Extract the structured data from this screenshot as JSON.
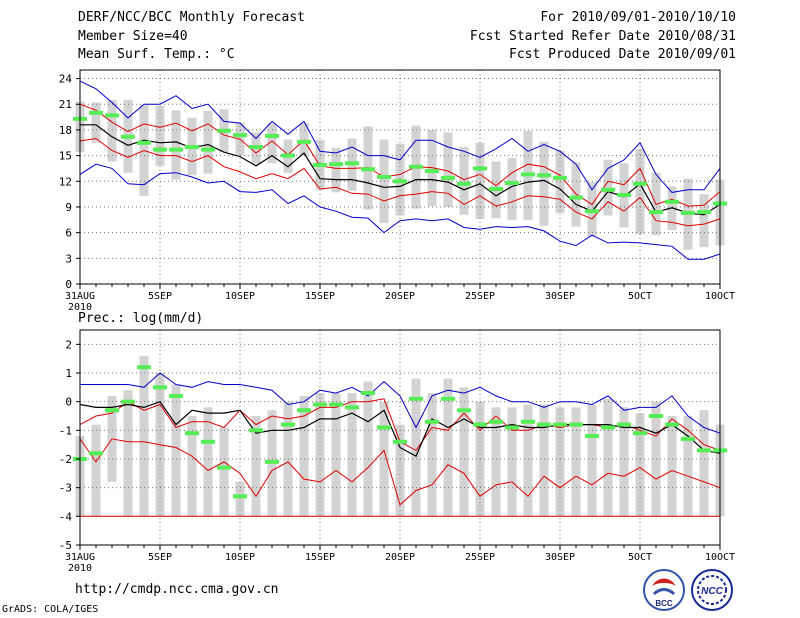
{
  "header": {
    "title": "DERF/NCC/BCC Monthly Forecast",
    "member_size": "Member Size=40",
    "variable1": "Mean Surf. Temp.: °C",
    "period": "For 2010/09/01-2010/10/10",
    "refer_date": "Fcst Started Refer Date 2010/08/31",
    "produced_date": "Fcst Produced Date 2010/09/01"
  },
  "footer": {
    "url": "http://cmdp.ncc.cma.gov.cn",
    "grads": "GrADS: COLA/IGES",
    "logo1_text": "BCC",
    "logo2_text": "NCC"
  },
  "colors": {
    "box": "#d3d3d3",
    "ensemble_mean": "#000000",
    "std_band": "#e00000",
    "envelope": "#0000cc",
    "median_marker": "#55ee55",
    "grid": "#777777"
  },
  "chart_data": [
    {
      "type": "line",
      "title": "Mean Surf. Temp.: °C",
      "xlabel": "",
      "ylabel": "°C",
      "ylim": [
        0,
        25
      ],
      "yticks": [
        0,
        3,
        6,
        9,
        12,
        15,
        18,
        21,
        24
      ],
      "x_tick_labels": [
        "31AUG",
        "5SEP",
        "10SEP",
        "15SEP",
        "20SEP",
        "25SEP",
        "30SEP",
        "5OCT",
        "10OCT"
      ],
      "x_sub_label": "2010",
      "series": [
        {
          "name": "max",
          "values": [
            23.7,
            22.8,
            21.2,
            19.4,
            21.0,
            21.0,
            22.0,
            20.5,
            21.0,
            19.0,
            18.8,
            17.0,
            19.0,
            17.5,
            19.0,
            15.5,
            15.3,
            16.0,
            15.0,
            15.0,
            14.5,
            16.8,
            16.8,
            16.0,
            15.5,
            14.8,
            15.8,
            17.0,
            15.5,
            16.3,
            15.5,
            14.0,
            11.0,
            13.5,
            14.5,
            16.5,
            12.8,
            10.7,
            11.0,
            11.0,
            13.5
          ]
        },
        {
          "name": "mean_plus_std",
          "values": [
            21.0,
            20.3,
            18.9,
            17.8,
            18.7,
            18.3,
            18.8,
            17.9,
            18.7,
            17.4,
            16.9,
            15.3,
            16.7,
            15.1,
            16.8,
            13.8,
            13.5,
            13.5,
            13.6,
            12.5,
            12.8,
            13.7,
            13.6,
            13.2,
            12.2,
            12.8,
            11.5,
            13.0,
            14.0,
            13.7,
            12.7,
            10.5,
            9.3,
            12.0,
            11.6,
            13.5,
            9.3,
            9.9,
            9.1,
            9.2,
            10.8
          ]
        },
        {
          "name": "ensemble_mean",
          "values": [
            18.6,
            18.6,
            17.2,
            16.2,
            16.8,
            16.5,
            16.6,
            15.9,
            16.3,
            15.4,
            14.9,
            13.8,
            15.0,
            13.7,
            15.3,
            12.3,
            12.2,
            12.2,
            11.8,
            11.3,
            11.4,
            12.2,
            12.2,
            11.9,
            11.0,
            11.7,
            10.3,
            11.4,
            11.9,
            12.1,
            11.1,
            9.3,
            8.5,
            10.8,
            10.2,
            11.7,
            8.4,
            8.9,
            8.3,
            8.1,
            9.3
          ]
        },
        {
          "name": "mean_minus_std",
          "values": [
            16.7,
            17.0,
            15.6,
            14.8,
            15.6,
            15.0,
            15.0,
            14.3,
            15.0,
            13.7,
            13.1,
            12.3,
            12.9,
            12.3,
            13.5,
            11.1,
            11.3,
            10.6,
            10.5,
            9.7,
            10.3,
            10.5,
            10.8,
            10.6,
            9.3,
            10.3,
            9.1,
            9.6,
            10.3,
            10.2,
            9.9,
            8.4,
            7.6,
            9.6,
            8.5,
            10.1,
            7.4,
            7.2,
            6.8,
            7.0,
            7.6
          ]
        },
        {
          "name": "min",
          "values": [
            12.8,
            14.0,
            13.5,
            11.7,
            11.6,
            12.9,
            13.0,
            12.5,
            11.8,
            12.0,
            10.8,
            10.7,
            11.0,
            9.4,
            10.3,
            9.0,
            8.5,
            7.8,
            7.7,
            6.0,
            7.4,
            7.6,
            7.4,
            7.6,
            6.6,
            6.4,
            6.7,
            6.6,
            6.7,
            6.2,
            5.0,
            4.5,
            5.7,
            4.8,
            4.9,
            4.8,
            4.6,
            4.4,
            2.9,
            2.9,
            3.5
          ]
        },
        {
          "name": "median",
          "values": [
            19.3,
            20.0,
            19.7,
            17.2,
            16.5,
            15.7,
            15.7,
            16.0,
            15.7,
            17.9,
            17.4,
            16.0,
            17.3,
            15.0,
            16.6,
            13.9,
            14.0,
            14.1,
            13.4,
            12.5,
            12.0,
            13.7,
            13.2,
            12.4,
            11.7,
            13.5,
            11.1,
            11.8,
            12.8,
            12.7,
            12.4,
            10.1,
            8.5,
            11.0,
            10.4,
            11.7,
            8.4,
            9.6,
            8.3,
            8.4,
            9.4
          ]
        },
        {
          "name": "box_upper",
          "values": [
            21.3,
            21.2,
            21.5,
            21.5,
            20.9,
            20.8,
            20.3,
            19.4,
            20.2,
            20.4,
            18.8,
            17.7,
            18.8,
            16.9,
            18.8,
            16.8,
            15.9,
            17.0,
            18.4,
            16.9,
            16.4,
            18.5,
            18.0,
            17.7,
            16.0,
            16.5,
            14.3,
            14.7,
            17.9,
            16.6,
            15.6,
            14.2,
            11.9,
            14.5,
            14.1,
            15.8,
            13.0,
            11.4,
            12.3,
            10.5,
            12.2
          ]
        },
        {
          "name": "box_lower",
          "values": [
            15.4,
            16.5,
            14.3,
            13.0,
            10.3,
            13.8,
            12.2,
            12.7,
            12.9,
            15.4,
            15.1,
            14.0,
            14.1,
            13.0,
            15.0,
            11.0,
            10.7,
            10.9,
            8.7,
            7.1,
            8.0,
            8.8,
            9.1,
            9.0,
            8.1,
            7.6,
            7.7,
            7.5,
            7.5,
            6.8,
            8.3,
            6.7,
            5.5,
            8.0,
            6.6,
            5.8,
            5.7,
            6.3,
            4.0,
            4.3,
            4.5
          ]
        }
      ]
    },
    {
      "type": "line",
      "title": "Prec.: log(mm/d)",
      "xlabel": "",
      "ylabel": "log(mm/d)",
      "ylim": [
        -5,
        2.5
      ],
      "yticks": [
        -5,
        -4,
        -3,
        -2,
        -1,
        0,
        1,
        2
      ],
      "x_tick_labels": [
        "31AUG",
        "5SEP",
        "10SEP",
        "15SEP",
        "20SEP",
        "25SEP",
        "30SEP",
        "5OCT",
        "10OCT"
      ],
      "x_sub_label": "2010",
      "series": [
        {
          "name": "max",
          "values": [
            0.6,
            0.6,
            0.6,
            0.6,
            0.5,
            1.0,
            0.6,
            0.5,
            0.7,
            0.6,
            0.6,
            0.5,
            0.4,
            -0.1,
            0.0,
            0.4,
            0.3,
            0.5,
            0.2,
            0.7,
            0.2,
            -0.9,
            0.2,
            0.4,
            0.3,
            0.5,
            0.2,
            0.0,
            0.0,
            -0.2,
            0.0,
            0.0,
            -0.1,
            0.2,
            -0.3,
            -0.2,
            -0.2,
            0.2,
            -0.5,
            -0.9,
            -1.1
          ]
        },
        {
          "name": "mean_plus_std",
          "values": [
            -0.8,
            -0.5,
            -0.4,
            0.0,
            -0.3,
            -0.1,
            -0.9,
            -0.7,
            -0.7,
            -0.9,
            -0.3,
            -0.8,
            -0.5,
            -0.6,
            -0.5,
            -0.2,
            -0.2,
            0.0,
            0.0,
            0.1,
            -1.4,
            -1.7,
            -0.9,
            -1.0,
            -0.4,
            -1.0,
            -0.5,
            -1.0,
            -1.0,
            -0.8,
            -0.9,
            -0.8,
            -0.8,
            -0.9,
            -0.8,
            -1.0,
            -1.2,
            -0.6,
            -1.0,
            -1.5,
            -1.7
          ]
        },
        {
          "name": "ensemble_mean",
          "values": [
            -0.1,
            -0.2,
            -0.2,
            -0.1,
            -0.2,
            0.0,
            -0.8,
            -0.3,
            -0.4,
            -0.4,
            -0.3,
            -1.1,
            -1.0,
            -1.0,
            -0.9,
            -0.6,
            -0.6,
            -0.4,
            -0.7,
            -0.3,
            -1.6,
            -1.9,
            -0.6,
            -0.9,
            -0.6,
            -0.9,
            -0.9,
            -0.8,
            -0.9,
            -0.9,
            -0.8,
            -0.8,
            -0.8,
            -0.8,
            -0.9,
            -0.9,
            -1.1,
            -0.8,
            -1.2,
            -1.7,
            -1.8
          ]
        },
        {
          "name": "mean_minus_std",
          "values": [
            -1.3,
            -2.1,
            -1.3,
            -1.4,
            -1.4,
            -1.5,
            -1.6,
            -1.9,
            -2.4,
            -2.1,
            -2.5,
            -3.3,
            -2.4,
            -2.1,
            -2.7,
            -2.8,
            -2.4,
            -2.8,
            -2.3,
            -1.7,
            -3.6,
            -3.1,
            -2.9,
            -2.2,
            -2.5,
            -3.3,
            -2.9,
            -2.8,
            -3.3,
            -2.6,
            -3.0,
            -2.6,
            -2.9,
            -2.5,
            -2.6,
            -2.3,
            -2.7,
            -2.4,
            -2.6,
            -2.8,
            -3.0
          ]
        },
        {
          "name": "min",
          "values": [
            -4,
            -4,
            -4,
            -4,
            -4,
            -4,
            -4,
            -4,
            -4,
            -4,
            -4,
            -4,
            -4,
            -4,
            -4,
            -4,
            -4,
            -4,
            -4,
            -4,
            -4,
            -4,
            -4,
            -4,
            -4,
            -4,
            -4,
            -4,
            -4,
            -4,
            -4,
            -4,
            -4,
            -4,
            -4,
            -4,
            -4,
            -4,
            -4,
            -4,
            -4
          ]
        },
        {
          "name": "median",
          "values": [
            -2.0,
            -1.8,
            -0.3,
            0.0,
            1.2,
            0.5,
            0.2,
            -1.1,
            -1.4,
            -2.3,
            -3.3,
            -1.0,
            -2.1,
            -0.8,
            -0.3,
            -0.1,
            -0.1,
            -0.2,
            0.3,
            -0.9,
            -1.4,
            0.1,
            -0.7,
            0.1,
            -0.3,
            -0.8,
            -0.7,
            -0.9,
            -0.7,
            -0.8,
            -0.8,
            -0.8,
            -1.2,
            -0.9,
            -0.8,
            -1.1,
            -0.5,
            -0.8,
            -1.3,
            -1.7,
            -1.7
          ]
        },
        {
          "name": "box_upper",
          "values": [
            -1.2,
            -0.8,
            0.2,
            0.4,
            1.6,
            1.0,
            0.6,
            -0.5,
            -0.2,
            -0.9,
            -2.8,
            -0.5,
            -0.3,
            0.0,
            0.2,
            0.3,
            0.3,
            0.3,
            0.7,
            0.0,
            -0.8,
            0.8,
            0.3,
            0.8,
            0.5,
            0.0,
            -0.2,
            -0.2,
            -0.1,
            -0.1,
            -0.2,
            -0.2,
            -0.1,
            0.1,
            -0.2,
            -0.4,
            0.0,
            -0.5,
            -0.5,
            -0.3,
            -0.8
          ]
        },
        {
          "name": "box_lower",
          "values": [
            -4,
            -4,
            -2.8,
            -4,
            -4,
            -4,
            -4,
            -4,
            -4,
            -4,
            -4,
            -4,
            -4,
            -4,
            -4,
            -4,
            -4,
            -4,
            -4,
            -4,
            -4,
            -4,
            -4,
            -4,
            -4,
            -4,
            -4,
            -4,
            -4,
            -4,
            -4,
            -4,
            -4,
            -4,
            -4,
            -4,
            -4,
            -4,
            -4,
            -4,
            -4
          ]
        }
      ]
    }
  ]
}
